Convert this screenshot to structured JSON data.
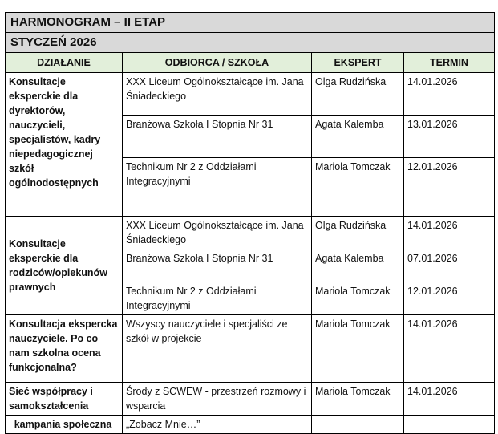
{
  "title": "HARMONOGRAM – II ETAP",
  "month": "STYCZEŃ 2026",
  "headers": [
    "DZIAŁANIE",
    "ODBIORCA / SZKOŁA",
    "EKSPERT",
    "TERMIN"
  ],
  "groups": [
    {
      "action": "Konsultacje eksperckie dla dyrektorów, nauczycieli, specjalistów, kadry niepedagogicznej szkół ogólnodostępnych",
      "rows": [
        {
          "recipient": "XXX Liceum Ogólnokształcące im. Jana Śniadeckiego",
          "expert": "Olga Rudzińska",
          "date": "14.01.2026"
        },
        {
          "recipient": "Branżowa Szkoła I Stopnia Nr 31",
          "expert": "Agata Kalemba",
          "date": "13.01.2026"
        },
        {
          "recipient": "Technikum Nr 2 z Oddziałami Integracyjnymi",
          "expert": "Mariola Tomczak",
          "date": "12.01.2026"
        }
      ]
    },
    {
      "action": "Konsultacje eksperckie dla rodziców/opiekunów prawnych",
      "rows": [
        {
          "recipient": "XXX Liceum Ogólnokształcące im. Jana Śniadeckiego",
          "expert": "Olga Rudzińska",
          "date": "14.01.2026"
        },
        {
          "recipient": "Branżowa Szkoła I Stopnia Nr 31",
          "expert": "Agata Kalemba",
          "date": "07.01.2026"
        },
        {
          "recipient": "Technikum Nr 2 z Oddziałami Integracyjnymi",
          "expert": "Mariola Tomczak",
          "date": "12.01.2026"
        }
      ]
    },
    {
      "action": "Konsultacja ekspercka nauczyciele.  Po co nam szkolna ocena funkcjonalna?",
      "rows": [
        {
          "recipient": "Wszyscy nauczyciele i specjaliści ze szkół w projekcie",
          "expert": "Mariola Tomczak",
          "date": "14.01.2026"
        }
      ]
    },
    {
      "action": "Sieć współpracy i samokształcenia",
      "rows": [
        {
          "recipient": "Środy z SCWEW - przestrzeń rozmowy i wsparcia",
          "expert": "Mariola Tomczak",
          "date": "14.01.2026"
        }
      ]
    },
    {
      "action": "kampania  społeczna",
      "rows": [
        {
          "recipient": "„Zobacz Mnie…”",
          "expert": "",
          "date": ""
        }
      ]
    }
  ]
}
